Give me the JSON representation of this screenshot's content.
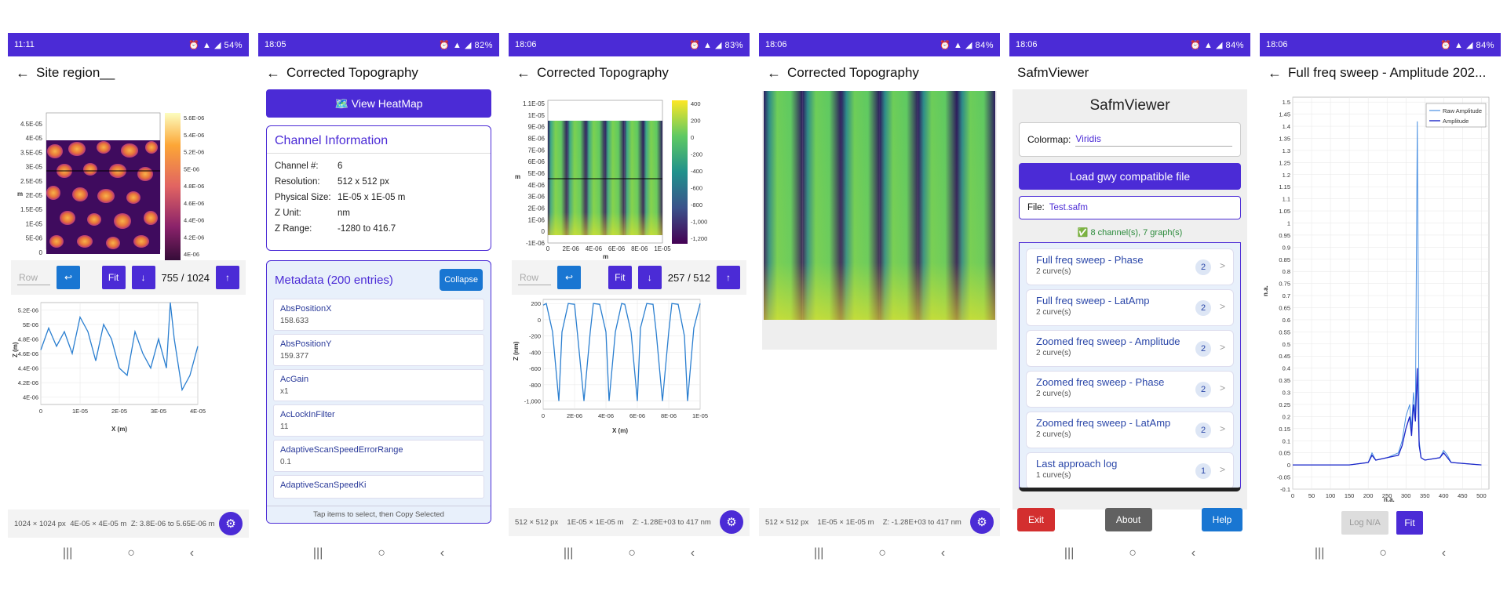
{
  "phones": [
    {
      "time": "11:11",
      "battery": "54%",
      "title": "Site region__"
    },
    {
      "time": "18:05",
      "battery": "82%",
      "title": "Corrected Topography"
    },
    {
      "time": "18:06",
      "battery": "83%",
      "title": "Corrected Topography"
    },
    {
      "time": "18:06",
      "battery": "84%",
      "title": "Corrected Topography"
    },
    {
      "time": "18:06",
      "battery": "84%",
      "title": "SafmViewer"
    },
    {
      "time": "18:06",
      "battery": "84%",
      "title": "Full freq sweep - Amplitude 202..."
    }
  ],
  "screen1": {
    "row_placeholder": "Row",
    "fit_label": "Fit",
    "counter": "755 / 1024",
    "footer": {
      "size": "1024 × 1024 px",
      "physical": "4E-05 × 4E-05 m",
      "z": "Z: 3.8E-06 to 5.65E-06 m"
    },
    "map_yticks": [
      "4.5E-05",
      "4E-05",
      "3.5E-05",
      "3E-05",
      "2.5E-05",
      "2E-05",
      "1.5E-05",
      "1E-05",
      "5E-06",
      "0",
      "-5E-06"
    ],
    "map_xticks": [
      "0",
      "1E-05",
      "2E-05",
      "3E-05",
      "4E-05"
    ],
    "map_axis_label": "m",
    "colorbar_ticks": [
      "5.6E-06",
      "5.4E-06",
      "5.2E-06",
      "5E-06",
      "4.8E-06",
      "4.6E-06",
      "4.4E-06",
      "4.2E-06",
      "4E-06",
      "3.8E-06"
    ],
    "profile_yticks": [
      "5.2E-06",
      "5E-06",
      "4.8E-06",
      "4.6E-06",
      "4.4E-06",
      "4.2E-06",
      "4E-06"
    ],
    "profile_xticks": [
      "0",
      "1E-05",
      "2E-05",
      "3E-05",
      "4E-05"
    ],
    "profile_xlabel": "X (m)",
    "profile_ylabel": "Z (m)"
  },
  "screen2": {
    "view_heatmap": "🗺️ View HeatMap",
    "info_title": "Channel Information",
    "info_rows": [
      {
        "k": "Channel #:",
        "v": "6"
      },
      {
        "k": "Resolution:",
        "v": "512 x 512 px"
      },
      {
        "k": "Physical Size:",
        "v": "1E-05 x 1E-05 m"
      },
      {
        "k": "Z Unit:",
        "v": "nm"
      },
      {
        "k": "Z Range:",
        "v": "-1280 to 416.7"
      }
    ],
    "meta_title": "Metadata (200 entries)",
    "collapse_label": "Collapse",
    "meta_items": [
      {
        "k": "AbsPositionX",
        "v": "158.633"
      },
      {
        "k": "AbsPositionY",
        "v": "159.377"
      },
      {
        "k": "AcGain",
        "v": "x1"
      },
      {
        "k": "AcLockInFilter",
        "v": "11"
      },
      {
        "k": "AdaptiveScanSpeedErrorRange",
        "v": "0.1"
      },
      {
        "k": "AdaptiveScanSpeedKi",
        "v": ""
      }
    ],
    "meta_hint": "Tap items to select, then Copy Selected"
  },
  "screen3": {
    "row_placeholder": "Row",
    "fit_label": "Fit",
    "counter": "257 / 512",
    "footer": {
      "size": "512 × 512 px",
      "physical": "1E-05 × 1E-05 m",
      "z": "Z: -1.28E+03 to 417 nm"
    },
    "map_yticks": [
      "1.1E-05",
      "1E-05",
      "9E-06",
      "8E-06",
      "7E-06",
      "6E-06",
      "5E-06",
      "4E-06",
      "3E-06",
      "2E-06",
      "1E-06",
      "0",
      "-1E-06"
    ],
    "map_xticks": [
      "0",
      "2E-06",
      "4E-06",
      "6E-06",
      "8E-06",
      "1E-05"
    ],
    "map_axis_label": "m",
    "colorbar_ticks": [
      "400",
      "200",
      "0",
      "-200",
      "-400",
      "-600",
      "-800",
      "-1,000",
      "-1,200"
    ],
    "profile_yticks": [
      "200",
      "0",
      "-200",
      "-400",
      "-600",
      "-800",
      "-1,000"
    ],
    "profile_xticks": [
      "0",
      "2E-06",
      "4E-06",
      "6E-06",
      "8E-06",
      "1E-05"
    ],
    "profile_xlabel": "X (m)",
    "profile_ylabel": "Z (nm)"
  },
  "screen4": {
    "footer": {
      "size": "512 × 512 px",
      "physical": "1E-05 × 1E-05 m",
      "z": "Z: -1.28E+03 to 417 nm"
    }
  },
  "screen5": {
    "heading": "SafmViewer",
    "colormap_label": "Colormap:",
    "colormap_value": "Viridis",
    "load_button": "Load gwy compatible file",
    "file_label": "File:",
    "file_value": "Test.safm",
    "status": "✅ 8 channel(s), 7 graph(s)",
    "graphs": [
      {
        "title": "Full freq sweep - Phase",
        "curves": "2 curve(s)",
        "count": "2"
      },
      {
        "title": "Full freq sweep - LatAmp",
        "curves": "2 curve(s)",
        "count": "2"
      },
      {
        "title": "Zoomed freq sweep - Amplitude",
        "curves": "2 curve(s)",
        "count": "2"
      },
      {
        "title": "Zoomed freq sweep - Phase",
        "curves": "2 curve(s)",
        "count": "2"
      },
      {
        "title": "Zoomed freq sweep - LatAmp",
        "curves": "2 curve(s)",
        "count": "2"
      },
      {
        "title": "Last approach log",
        "curves": "1 curve(s)",
        "count": "1"
      }
    ],
    "exit_label": "Exit",
    "about_label": "About",
    "help_label": "Help"
  },
  "screen6": {
    "log_label": "Log N/A",
    "fit_label": "Fit"
  },
  "chart_data": [
    {
      "type": "line",
      "xlabel": "X (m)",
      "ylabel": "Z (m)",
      "xlim": [
        0,
        4e-05
      ],
      "ylim": [
        3.9e-06,
        5.3e-06
      ],
      "series": [
        {
          "x": [
            0,
            2e-06,
            4e-06,
            6e-06,
            8e-06,
            1e-05,
            1.2e-05,
            1.4e-05,
            1.6e-05,
            1.8e-05,
            2e-05,
            2.2e-05,
            2.4e-05,
            2.6e-05,
            2.8e-05,
            3e-05,
            3.2e-05,
            3.3e-05,
            3.4e-05,
            3.6e-05,
            3.8e-05,
            4e-05
          ],
          "values": [
            4.65e-06,
            4.95e-06,
            4.7e-06,
            4.9e-06,
            4.6e-06,
            5.1e-06,
            4.9e-06,
            4.5e-06,
            5e-06,
            4.8e-06,
            4.4e-06,
            4.3e-06,
            4.9e-06,
            4.6e-06,
            4.4e-06,
            4.8e-06,
            4.4e-06,
            5.3e-06,
            4.8e-06,
            4.1e-06,
            4.3e-06,
            4.7e-06
          ]
        }
      ]
    },
    {
      "type": "line",
      "xlabel": "X (m)",
      "ylabel": "Z (nm)",
      "xlim": [
        0,
        1e-05
      ],
      "ylim": [
        -1100,
        250
      ],
      "series": [
        {
          "x": [
            0,
            2e-07,
            6e-07,
            1e-06,
            1.2e-06,
            1.6e-06,
            2e-06,
            2.2e-06,
            2.6e-06,
            3e-06,
            3.2e-06,
            3.6e-06,
            4e-06,
            4.2e-06,
            4.6e-06,
            5e-06,
            5.2e-06,
            5.6e-06,
            6e-06,
            6.2e-06,
            6.6e-06,
            7e-06,
            7.2e-06,
            7.6e-06,
            8e-06,
            8.2e-06,
            8.6e-06,
            9e-06,
            9.2e-06,
            9.6e-06,
            1e-05
          ],
          "values": [
            180,
            200,
            -150,
            -1000,
            -150,
            200,
            190,
            -200,
            -1000,
            -150,
            200,
            190,
            -150,
            -1000,
            -150,
            200,
            190,
            -150,
            -1000,
            -100,
            200,
            190,
            -150,
            -1000,
            -150,
            200,
            190,
            -200,
            -1000,
            -100,
            200
          ]
        }
      ]
    },
    {
      "type": "line",
      "xlabel": "n.a.",
      "ylabel": "n.a.",
      "xlim": [
        0,
        520
      ],
      "ylim": [
        -0.1,
        1.52
      ],
      "yticks": [
        "1.5",
        "1.45",
        "1.4",
        "1.35",
        "1.3",
        "1.25",
        "1.2",
        "1.15",
        "1.1",
        "1.05",
        "1",
        "0.95",
        "0.9",
        "0.85",
        "0.8",
        "0.75",
        "0.7",
        "0.65",
        "0.6",
        "0.55",
        "0.5",
        "0.45",
        "0.4",
        "0.35",
        "0.3",
        "0.25",
        "0.2",
        "0.15",
        "0.1",
        "0.05",
        "0",
        "-0.05",
        "-0.1"
      ],
      "xticks": [
        "0",
        "50",
        "100",
        "150",
        "200",
        "250",
        "300",
        "350",
        "400",
        "450",
        "500"
      ],
      "legend": "top-right",
      "series": [
        {
          "name": "Raw Amplitude",
          "x": [
            0,
            150,
            200,
            210,
            220,
            250,
            280,
            290,
            300,
            310,
            315,
            320,
            325,
            330,
            335,
            340,
            350,
            390,
            400,
            410,
            420,
            500
          ],
          "values": [
            0,
            0,
            0.01,
            0.05,
            0.02,
            0.03,
            0.05,
            0.1,
            0.2,
            0.25,
            0.15,
            0.3,
            0.2,
            1.42,
            0.1,
            0.03,
            0.02,
            0.03,
            0.06,
            0.04,
            0.01,
            0
          ]
        },
        {
          "name": "Amplitude",
          "x": [
            0,
            150,
            200,
            210,
            220,
            250,
            280,
            290,
            300,
            310,
            315,
            320,
            325,
            330,
            335,
            340,
            350,
            390,
            400,
            410,
            420,
            500
          ],
          "values": [
            0,
            0,
            0.01,
            0.04,
            0.02,
            0.03,
            0.04,
            0.08,
            0.15,
            0.2,
            0.12,
            0.25,
            0.18,
            0.4,
            0.08,
            0.03,
            0.02,
            0.03,
            0.05,
            0.03,
            0.01,
            0
          ]
        }
      ]
    }
  ]
}
